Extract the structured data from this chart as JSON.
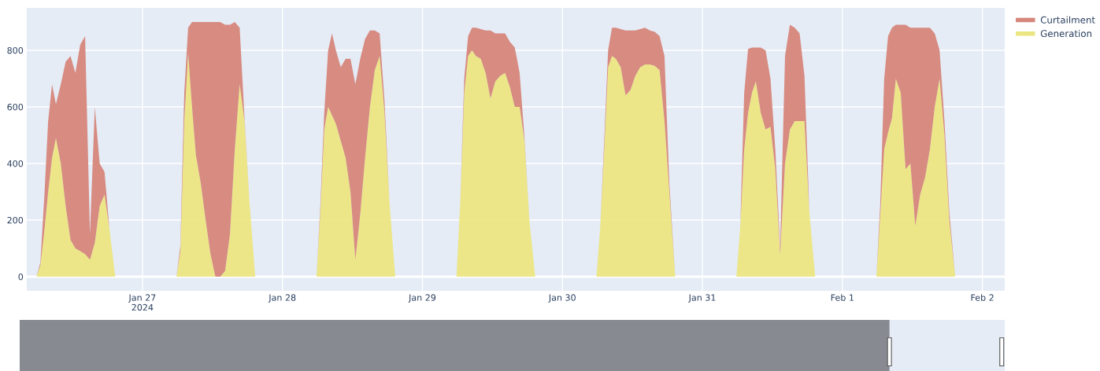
{
  "chart_data": {
    "type": "area",
    "stacked": true,
    "legend": "top right",
    "grid": true,
    "xlim": [
      "2024-01-26T04:10",
      "2024-02-02T03:50"
    ],
    "xticks": [
      {
        "value": "2024-01-27",
        "label": "Jan 27\n2024"
      },
      {
        "value": "2024-01-28",
        "label": "Jan 28"
      },
      {
        "value": "2024-01-29",
        "label": "Jan 29"
      },
      {
        "value": "2024-01-30",
        "label": "Jan 30"
      },
      {
        "value": "2024-01-31",
        "label": "Jan 31"
      },
      {
        "value": "2024-02-01",
        "label": "Feb 1"
      },
      {
        "value": "2024-02-02",
        "label": "Feb 2"
      }
    ],
    "ylim": [
      -50,
      950
    ],
    "yticks": [
      0,
      200,
      400,
      600,
      800
    ],
    "x": [
      "2024-01-26T04:10",
      "2024-01-26T05:50",
      "2024-01-26T06:30",
      "2024-01-26T07:10",
      "2024-01-26T07:50",
      "2024-01-26T08:30",
      "2024-01-26T09:10",
      "2024-01-26T10:00",
      "2024-01-26T10:50",
      "2024-01-26T11:40",
      "2024-01-26T12:30",
      "2024-01-26T13:20",
      "2024-01-26T14:10",
      "2024-01-26T15:00",
      "2024-01-26T15:50",
      "2024-01-26T16:40",
      "2024-01-26T17:30",
      "2024-01-26T18:20",
      "2024-01-26T19:20",
      "2024-01-27T05:50",
      "2024-01-27T06:30",
      "2024-01-27T07:10",
      "2024-01-27T07:50",
      "2024-01-27T08:30",
      "2024-01-27T09:10",
      "2024-01-27T10:00",
      "2024-01-27T10:50",
      "2024-01-27T11:40",
      "2024-01-27T12:30",
      "2024-01-27T13:20",
      "2024-01-27T14:10",
      "2024-01-27T15:00",
      "2024-01-27T15:50",
      "2024-01-27T16:40",
      "2024-01-27T17:30",
      "2024-01-27T18:20",
      "2024-01-27T19:20",
      "2024-01-28T05:50",
      "2024-01-28T06:30",
      "2024-01-28T07:10",
      "2024-01-28T07:50",
      "2024-01-28T08:30",
      "2024-01-28T09:10",
      "2024-01-28T10:00",
      "2024-01-28T10:50",
      "2024-01-28T11:40",
      "2024-01-28T12:30",
      "2024-01-28T13:20",
      "2024-01-28T14:10",
      "2024-01-28T15:00",
      "2024-01-28T15:50",
      "2024-01-28T16:40",
      "2024-01-28T17:30",
      "2024-01-28T18:20",
      "2024-01-28T19:20",
      "2024-01-29T05:50",
      "2024-01-29T06:30",
      "2024-01-29T07:10",
      "2024-01-29T07:50",
      "2024-01-29T08:30",
      "2024-01-29T09:10",
      "2024-01-29T10:00",
      "2024-01-29T10:50",
      "2024-01-29T11:40",
      "2024-01-29T12:30",
      "2024-01-29T13:20",
      "2024-01-29T14:10",
      "2024-01-29T15:00",
      "2024-01-29T15:50",
      "2024-01-29T16:40",
      "2024-01-29T17:30",
      "2024-01-29T18:20",
      "2024-01-29T19:20",
      "2024-01-30T05:50",
      "2024-01-30T06:30",
      "2024-01-30T07:10",
      "2024-01-30T07:50",
      "2024-01-30T08:30",
      "2024-01-30T09:10",
      "2024-01-30T10:00",
      "2024-01-30T10:50",
      "2024-01-30T11:40",
      "2024-01-30T12:30",
      "2024-01-30T13:20",
      "2024-01-30T14:10",
      "2024-01-30T15:00",
      "2024-01-30T15:50",
      "2024-01-30T16:40",
      "2024-01-30T17:30",
      "2024-01-30T18:20",
      "2024-01-30T19:20",
      "2024-01-31T05:50",
      "2024-01-31T06:30",
      "2024-01-31T07:10",
      "2024-01-31T07:50",
      "2024-01-31T08:30",
      "2024-01-31T09:10",
      "2024-01-31T10:00",
      "2024-01-31T10:50",
      "2024-01-31T11:40",
      "2024-01-31T12:30",
      "2024-01-31T13:20",
      "2024-01-31T14:10",
      "2024-01-31T15:00",
      "2024-01-31T15:50",
      "2024-01-31T16:40",
      "2024-01-31T17:30",
      "2024-01-31T18:20",
      "2024-01-31T19:20",
      "2024-02-01T05:50",
      "2024-02-01T06:30",
      "2024-02-01T07:10",
      "2024-02-01T07:50",
      "2024-02-01T08:30",
      "2024-02-01T09:10",
      "2024-02-01T10:00",
      "2024-02-01T10:50",
      "2024-02-01T11:40",
      "2024-02-01T12:30",
      "2024-02-01T13:20",
      "2024-02-01T14:10",
      "2024-02-01T15:00",
      "2024-02-01T15:50",
      "2024-02-01T16:40",
      "2024-02-01T17:30",
      "2024-02-01T18:20",
      "2024-02-01T19:20",
      "2024-02-02T03:50"
    ],
    "series": [
      {
        "name": "Generation",
        "color": "#ece682",
        "values": [
          0,
          0,
          40,
          160,
          300,
          420,
          490,
          400,
          250,
          130,
          100,
          90,
          80,
          60,
          120,
          250,
          290,
          170,
          0,
          0,
          90,
          550,
          790,
          600,
          430,
          330,
          200,
          80,
          0,
          0,
          20,
          150,
          450,
          680,
          550,
          270,
          0,
          0,
          230,
          520,
          600,
          570,
          540,
          480,
          420,
          300,
          60,
          220,
          420,
          600,
          730,
          780,
          580,
          270,
          0,
          0,
          270,
          650,
          780,
          800,
          780,
          770,
          720,
          630,
          690,
          710,
          720,
          670,
          600,
          600,
          480,
          200,
          0,
          0,
          180,
          450,
          740,
          780,
          770,
          740,
          640,
          660,
          710,
          740,
          750,
          750,
          745,
          730,
          550,
          300,
          0,
          0,
          180,
          450,
          580,
          650,
          690,
          580,
          520,
          530,
          380,
          80,
          400,
          520,
          550,
          550,
          550,
          230,
          0,
          0,
          220,
          450,
          510,
          560,
          700,
          650,
          380,
          400,
          180,
          290,
          350,
          450,
          600,
          700,
          500,
          200,
          0,
          0
        ]
      },
      {
        "name": "Curtailment",
        "color": "#d6867a",
        "values": [
          0,
          0,
          10,
          120,
          250,
          260,
          120,
          280,
          510,
          650,
          620,
          730,
          770,
          90,
          480,
          150,
          80,
          0,
          0,
          0,
          20,
          100,
          90,
          300,
          470,
          570,
          700,
          820,
          900,
          900,
          870,
          740,
          450,
          200,
          10,
          0,
          0,
          0,
          20,
          60,
          200,
          290,
          260,
          260,
          350,
          470,
          620,
          550,
          420,
          270,
          140,
          80,
          40,
          0,
          0,
          0,
          0,
          50,
          70,
          80,
          100,
          105,
          150,
          240,
          170,
          150,
          140,
          160,
          210,
          120,
          10,
          0,
          0,
          0,
          0,
          30,
          60,
          100,
          110,
          135,
          230,
          210,
          160,
          135,
          130,
          120,
          120,
          120,
          230,
          30,
          0,
          0,
          0,
          200,
          225,
          160,
          120,
          230,
          280,
          170,
          70,
          20,
          380,
          370,
          330,
          310,
          160,
          0,
          0,
          0,
          40,
          250,
          340,
          320,
          190,
          240,
          510,
          480,
          700,
          590,
          530,
          430,
          260,
          100,
          50,
          30,
          0,
          0
        ]
      }
    ]
  }
}
